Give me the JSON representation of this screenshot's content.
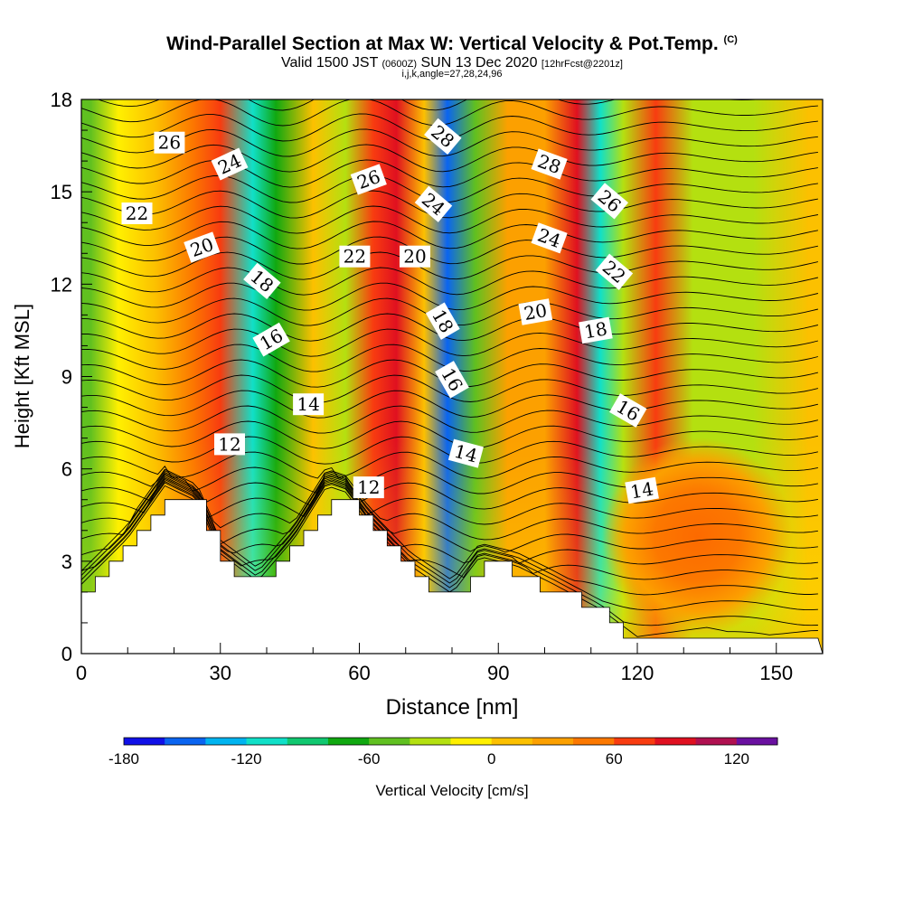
{
  "header": {
    "title_main": "Wind-Parallel Section at Max W: Vertical Velocity & Pot.Temp.",
    "title_mark": "(C)",
    "sub_a": "Valid 1500 JST",
    "sub_b": "(0600Z)",
    "sub_c": "SUN 13 Dec 2020",
    "sub_d": "[12hrFcst@2201z]",
    "indices": "i,j,k,angle=27,28,24,96"
  },
  "colors": {
    "colorbar": [
      "#1010e8",
      "#0a64f0",
      "#00b4f0",
      "#10e0c8",
      "#10c870",
      "#10a810",
      "#60c020",
      "#b4e010",
      "#fff000",
      "#fcc000",
      "#fca000",
      "#fc7800",
      "#f83c10",
      "#e01020",
      "#b01050",
      "#6a10a0"
    ],
    "terrain": "#ffffff",
    "isentrope": "#000000"
  },
  "chart_data": {
    "type": "heatmap",
    "xlabel": "Distance [nm]",
    "ylabel": "Height [Kft MSL]",
    "xlim": [
      0,
      160
    ],
    "ylim": [
      0,
      18
    ],
    "xticks": [
      "0",
      "30",
      "60",
      "90",
      "120",
      "150"
    ],
    "yticks": [
      "0",
      "3",
      "6",
      "9",
      "12",
      "15",
      "18"
    ],
    "colorbar": {
      "label": "Vertical Velocity [cm/s]",
      "min": -180,
      "max": 140,
      "step": 20,
      "ticks": [
        "-180",
        "-120",
        "-60",
        "0",
        "60",
        "120"
      ]
    },
    "vertical_velocity_bands": [
      {
        "x": 2,
        "value": -60
      },
      {
        "x": 8,
        "value": -20
      },
      {
        "x": 16,
        "value": 10
      },
      {
        "x": 24,
        "value": 50
      },
      {
        "x": 30,
        "value": 70
      },
      {
        "x": 37,
        "value": -120
      },
      {
        "x": 42,
        "value": -70
      },
      {
        "x": 50,
        "value": 5
      },
      {
        "x": 57,
        "value": -40
      },
      {
        "x": 63,
        "value": 70
      },
      {
        "x": 68,
        "value": 90
      },
      {
        "x": 74,
        "value": 10
      },
      {
        "x": 79,
        "value": -160
      },
      {
        "x": 85,
        "value": -60
      },
      {
        "x": 92,
        "value": 20
      },
      {
        "x": 100,
        "value": 30
      },
      {
        "x": 107,
        "value": 90
      },
      {
        "x": 112,
        "value": -110
      },
      {
        "x": 117,
        "value": -40
      },
      {
        "x": 124,
        "value": 70
      },
      {
        "x": 132,
        "value": -30
      },
      {
        "x": 145,
        "value": -30
      },
      {
        "x": 157,
        "value": 10
      }
    ],
    "low_level_core": {
      "x": 133,
      "y": 3.8,
      "value": 50
    },
    "terrain_profile": [
      {
        "x": 0,
        "height": 2.0
      },
      {
        "x": 10,
        "height": 3.5
      },
      {
        "x": 18,
        "height": 5.2
      },
      {
        "x": 25,
        "height": 4.7
      },
      {
        "x": 30,
        "height": 3.0
      },
      {
        "x": 38,
        "height": 2.1
      },
      {
        "x": 46,
        "height": 3.5
      },
      {
        "x": 53,
        "height": 5.2
      },
      {
        "x": 57,
        "height": 5.0
      },
      {
        "x": 62,
        "height": 4.0
      },
      {
        "x": 71,
        "height": 2.6
      },
      {
        "x": 80,
        "height": 1.7
      },
      {
        "x": 86,
        "height": 2.9
      },
      {
        "x": 94,
        "height": 2.6
      },
      {
        "x": 102,
        "height": 2.0
      },
      {
        "x": 112,
        "height": 1.2
      },
      {
        "x": 120,
        "height": 0.3
      },
      {
        "x": 135,
        "height": 0.6
      },
      {
        "x": 145,
        "height": 0.3
      },
      {
        "x": 158,
        "height": 0.5
      }
    ],
    "isentrope_labels": [
      {
        "text": "26",
        "x": 19,
        "y": 16.6,
        "angle": 0
      },
      {
        "text": "24",
        "x": 32,
        "y": 15.9,
        "angle": -25
      },
      {
        "text": "22",
        "x": 12,
        "y": 14.3,
        "angle": 0
      },
      {
        "text": "20",
        "x": 26,
        "y": 13.2,
        "angle": -20
      },
      {
        "text": "18",
        "x": 39,
        "y": 12.1,
        "angle": 40
      },
      {
        "text": "16",
        "x": 41,
        "y": 10.2,
        "angle": -30
      },
      {
        "text": "14",
        "x": 49,
        "y": 8.1,
        "angle": 0
      },
      {
        "text": "12",
        "x": 32,
        "y": 6.8,
        "angle": 0
      },
      {
        "text": "26",
        "x": 62,
        "y": 15.4,
        "angle": -20
      },
      {
        "text": "22",
        "x": 59,
        "y": 12.9,
        "angle": 0
      },
      {
        "text": "28",
        "x": 78,
        "y": 16.8,
        "angle": 40
      },
      {
        "text": "24",
        "x": 76,
        "y": 14.6,
        "angle": 40
      },
      {
        "text": "20",
        "x": 72,
        "y": 12.9,
        "angle": 0
      },
      {
        "text": "18",
        "x": 78,
        "y": 10.8,
        "angle": 60
      },
      {
        "text": "16",
        "x": 80,
        "y": 8.9,
        "angle": 60
      },
      {
        "text": "14",
        "x": 83,
        "y": 6.5,
        "angle": 15
      },
      {
        "text": "12",
        "x": 62,
        "y": 5.4,
        "angle": 0
      },
      {
        "text": "28",
        "x": 101,
        "y": 15.9,
        "angle": 20
      },
      {
        "text": "24",
        "x": 101,
        "y": 13.5,
        "angle": 20
      },
      {
        "text": "20",
        "x": 98,
        "y": 11.1,
        "angle": -10
      },
      {
        "text": "26",
        "x": 114,
        "y": 14.7,
        "angle": 40
      },
      {
        "text": "22",
        "x": 115,
        "y": 12.4,
        "angle": 40
      },
      {
        "text": "18",
        "x": 111,
        "y": 10.5,
        "angle": -10
      },
      {
        "text": "16",
        "x": 118,
        "y": 7.9,
        "angle": 30
      },
      {
        "text": "14",
        "x": 121,
        "y": 5.3,
        "angle": -10
      }
    ]
  }
}
